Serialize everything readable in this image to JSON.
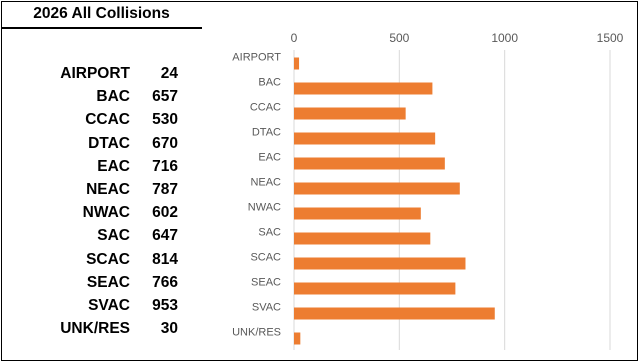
{
  "table": {
    "title": "2026 All Collisions",
    "rows": [
      {
        "name": "AIRPORT",
        "value": "24"
      },
      {
        "name": "BAC",
        "value": "657"
      },
      {
        "name": "CCAC",
        "value": "530"
      },
      {
        "name": "DTAC",
        "value": "670"
      },
      {
        "name": "EAC",
        "value": "716"
      },
      {
        "name": "NEAC",
        "value": "787"
      },
      {
        "name": "NWAC",
        "value": "602"
      },
      {
        "name": "SAC",
        "value": "647"
      },
      {
        "name": "SCAC",
        "value": "814"
      },
      {
        "name": "SEAC",
        "value": "766"
      },
      {
        "name": "SVAC",
        "value": "953"
      },
      {
        "name": "UNK/RES",
        "value": "30"
      }
    ]
  },
  "chart_data": {
    "type": "bar",
    "orientation": "horizontal",
    "categories": [
      "AIRPORT",
      "BAC",
      "CCAC",
      "DTAC",
      "EAC",
      "NEAC",
      "NWAC",
      "SAC",
      "SCAC",
      "SEAC",
      "SVAC",
      "UNK/RES"
    ],
    "values": [
      24,
      657,
      530,
      670,
      716,
      787,
      602,
      647,
      814,
      766,
      953,
      30
    ],
    "xlim": [
      0,
      1500
    ],
    "xticks": [
      0,
      500,
      1000,
      1500
    ],
    "x_axis_position": "top",
    "grid": true,
    "bar_color": "#ED7D31",
    "grid_color": "#D9D9D9",
    "tick_label_color": "#595959"
  }
}
